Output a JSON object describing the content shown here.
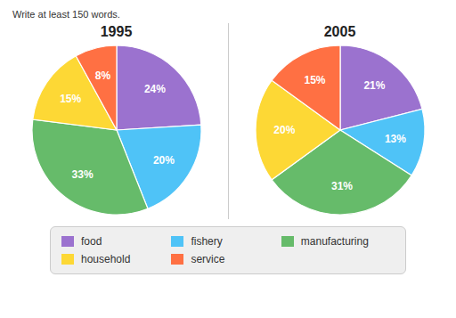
{
  "chart_data": [
    {
      "type": "pie",
      "title": "1995",
      "annotations": [
        "Write at least 150 words."
      ],
      "categories": [
        "food",
        "fishery",
        "manufacturing",
        "household",
        "service"
      ],
      "values": [
        24,
        20,
        33,
        15,
        8
      ],
      "value_labels": [
        "24%",
        "20%",
        "33%",
        "15%",
        "8%"
      ],
      "colors": [
        "#9b72cf",
        "#4fc3f7",
        "#66bb6a",
        "#fdd835",
        "#ff7043"
      ],
      "data_labels": true,
      "legend": "bottom"
    },
    {
      "type": "pie",
      "title": "2005",
      "categories": [
        "food",
        "fishery",
        "manufacturing",
        "household",
        "service"
      ],
      "values": [
        21,
        13,
        31,
        20,
        15
      ],
      "value_labels": [
        "21%",
        "13%",
        "31%",
        "20%",
        "15%"
      ],
      "colors": [
        "#9b72cf",
        "#4fc3f7",
        "#66bb6a",
        "#fdd835",
        "#ff7043"
      ],
      "data_labels": true,
      "legend": "bottom"
    }
  ]
}
